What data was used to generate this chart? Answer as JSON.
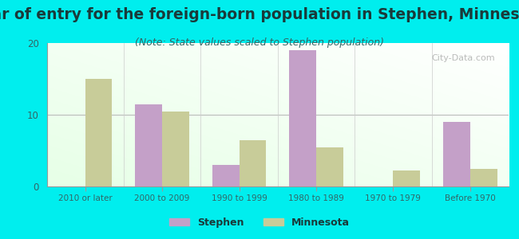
{
  "title": "Year of entry for the foreign-born population in Stephen, Minnesota",
  "subtitle": "(Note: State values scaled to Stephen population)",
  "categories": [
    "2010 or later",
    "2000 to 2009",
    "1990 to 1999",
    "1980 to 1989",
    "1970 to 1979",
    "Before 1970"
  ],
  "stephen_values": [
    0,
    11.5,
    3,
    19,
    0,
    9
  ],
  "minnesota_values": [
    15,
    10.5,
    6.5,
    5.5,
    2.2,
    2.5
  ],
  "stephen_color": "#c4a0c8",
  "minnesota_color": "#c8cc99",
  "background_outer": "#00eeee",
  "ylim": [
    0,
    20
  ],
  "yticks": [
    0,
    10,
    20
  ],
  "bar_width": 0.35,
  "title_fontsize": 13.5,
  "subtitle_fontsize": 9,
  "title_color": "#1a3a3a",
  "subtitle_color": "#336666",
  "tick_color": "#336666",
  "watermark_text": "City-Data.com",
  "legend_label_stephen": "Stephen",
  "legend_label_minnesota": "Minnesota"
}
